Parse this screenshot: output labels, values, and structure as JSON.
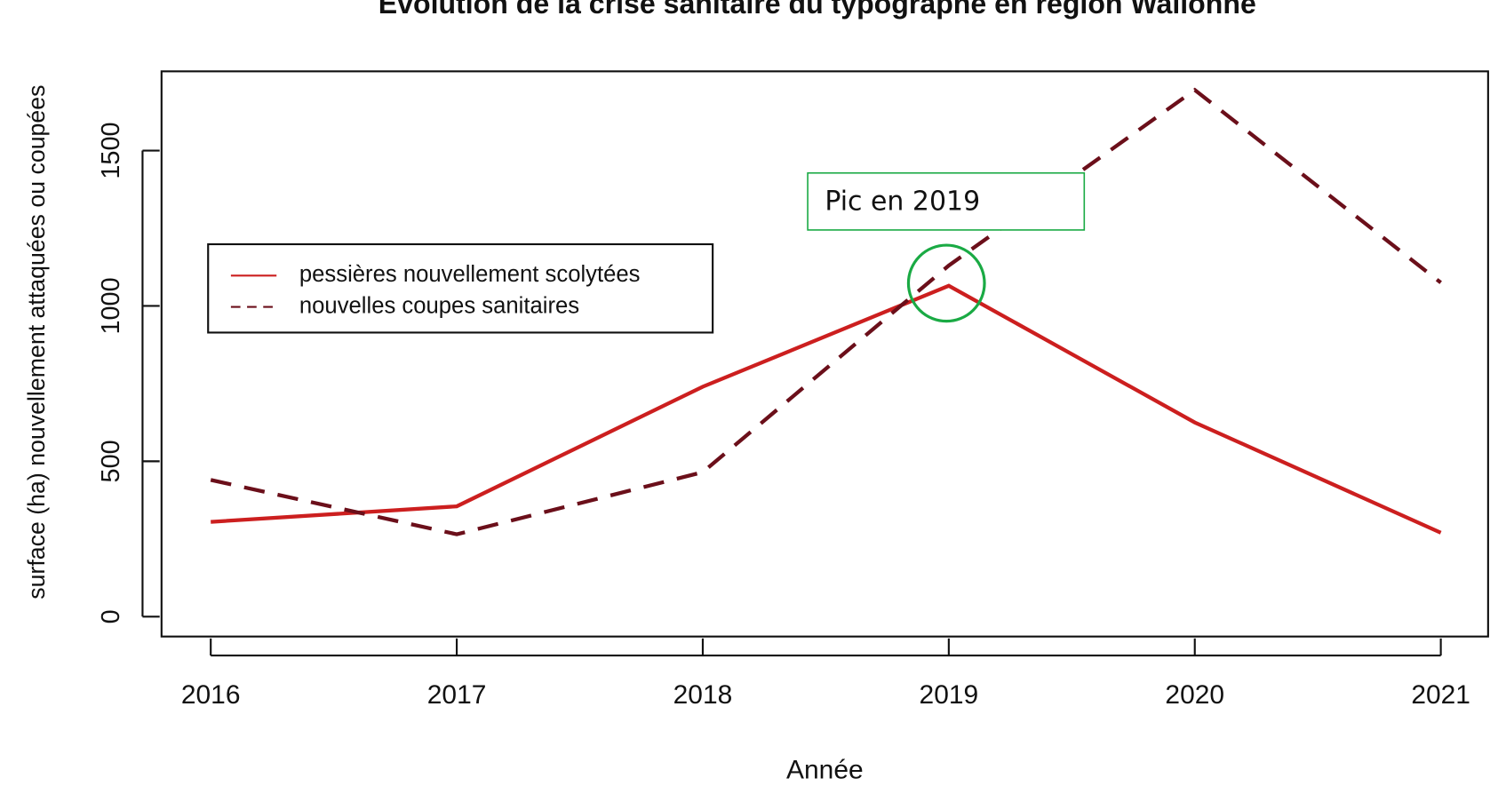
{
  "chart_data": {
    "type": "line",
    "title": "Evolution de la crise sanitaire du typographe en région Wallonne",
    "x_label": "Année",
    "y_label": "surface (ha) nouvellement attaquées ou coupées",
    "x": [
      2016,
      2017,
      2018,
      2019,
      2020,
      2021
    ],
    "series": [
      {
        "name": "pessières nouvellement scolytées",
        "color": "#cc1f1f",
        "values": [
          305,
          355,
          740,
          1065,
          625,
          270
        ]
      },
      {
        "name": "nouvelles coupes sanitaires",
        "color": "#6b0f1a",
        "values": [
          440,
          265,
          465,
          1130,
          1695,
          1075
        ]
      }
    ],
    "xlim": [
      2015.8,
      2021.2
    ],
    "xticks": [
      2016,
      2017,
      2018,
      2019,
      2020,
      2021
    ],
    "ylim": [
      -64,
      1755
    ],
    "yticks": [
      0,
      500,
      1000,
      1500
    ],
    "legend": "left",
    "annotation": "Pic en 2019"
  }
}
